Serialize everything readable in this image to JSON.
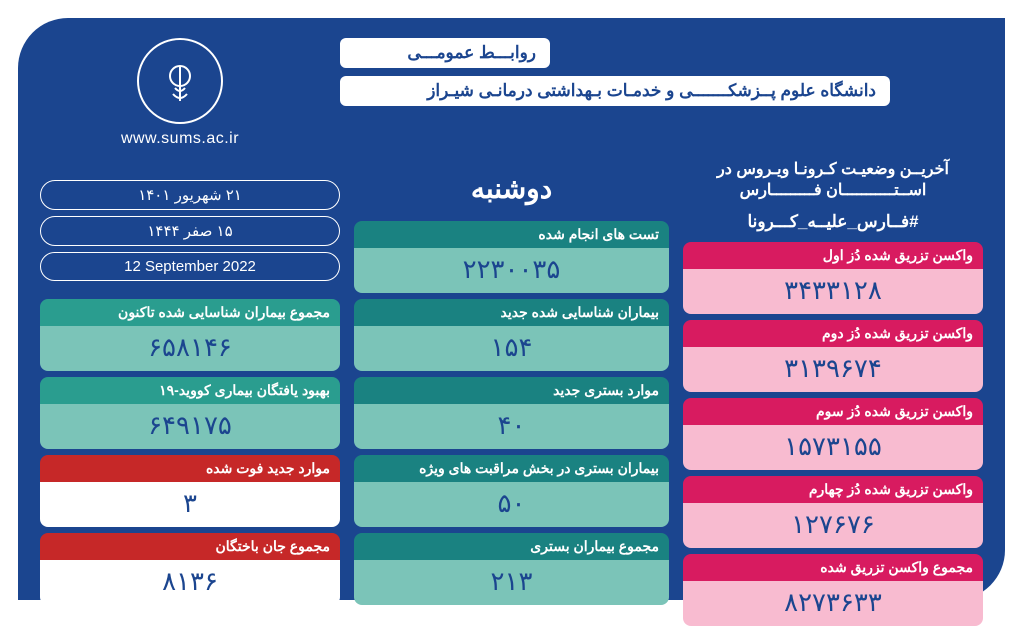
{
  "header": {
    "pr": "روابـــط عمومـــی",
    "university": "دانشگاه علوم پــزشکـــــــی و خدمـات بـهداشتی درمانـی شیـراز",
    "url": "www.sums.ac.ir"
  },
  "status_title": "آخریــن وضعیـت کـرونـا ویـروس در اســتـــــــــــان فـــــــــارس",
  "hashtag": "#فــارس_علیــه_کـــرونا",
  "day": "دوشنبه",
  "dates": {
    "shamsi": "۲۱ شهریور ۱۴۰۱",
    "qamari": "۱۵ صفر ۱۴۴۴",
    "gregorian": "12  September 2022"
  },
  "vaccine": [
    {
      "label": "واکسن تزریق شده دُز اول",
      "value": "۳۴۳۳۱۲۸"
    },
    {
      "label": "واکسن تزریق شده دُز دوم",
      "value": "۳۱۳۹۶۷۴"
    },
    {
      "label": "واکسن تزریق شده دُز سوم",
      "value": "۱۵۷۳۱۵۵"
    },
    {
      "label": "واکسن تزریق شده دُز چهارم",
      "value": "۱۲۷۶۷۶"
    },
    {
      "label": "مجموع واکسن تزریق شده",
      "value": "۸۲۷۳۶۳۳"
    }
  ],
  "cases": [
    {
      "label": "تست های انجام شده",
      "value": "۲۲۳۰۰۳۵"
    },
    {
      "label": "بیماران شناسایی شده جدید",
      "value": "۱۵۴"
    },
    {
      "label": "موارد بستری جدید",
      "value": "۴۰"
    },
    {
      "label": "بیماران بستری در بخش مراقبت های ویژه",
      "value": "۵۰"
    },
    {
      "label": "مجموع بیماران بستری",
      "value": "۲۱۳"
    }
  ],
  "summary": [
    {
      "label": "مجموع بیماران شناسایی شده تاکنون",
      "value": "۶۵۸۱۴۶",
      "cls": "teal-mid"
    },
    {
      "label": "بهبود یافتگان بیماری کووید-۱۹",
      "value": "۶۴۹۱۷۵",
      "cls": "teal-mid"
    },
    {
      "label": "موارد جدید فوت شده",
      "value": "۳",
      "cls": "red-dark"
    },
    {
      "label": "مجموع جان باختگان",
      "value": "۸۱۳۶",
      "cls": "red-dark"
    }
  ],
  "colors": {
    "frame_bg": "#1b458f",
    "pink_header": "#d81b60",
    "pink_value": "#f8bbd0",
    "teal_header": "#1a8281",
    "teal_value": "#7bc4b8",
    "red_header": "#c62828"
  }
}
